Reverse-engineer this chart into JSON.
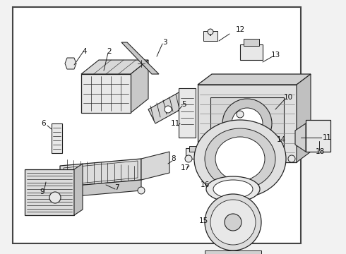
{
  "bg_color": "#f2f2f2",
  "border_color": "#444444",
  "line_color": "#222222",
  "text_color": "#111111",
  "figsize": [
    4.9,
    3.6
  ],
  "dpi": 100,
  "white": "#ffffff",
  "light_gray": "#e8e8e8",
  "mid_gray": "#d0d0d0"
}
